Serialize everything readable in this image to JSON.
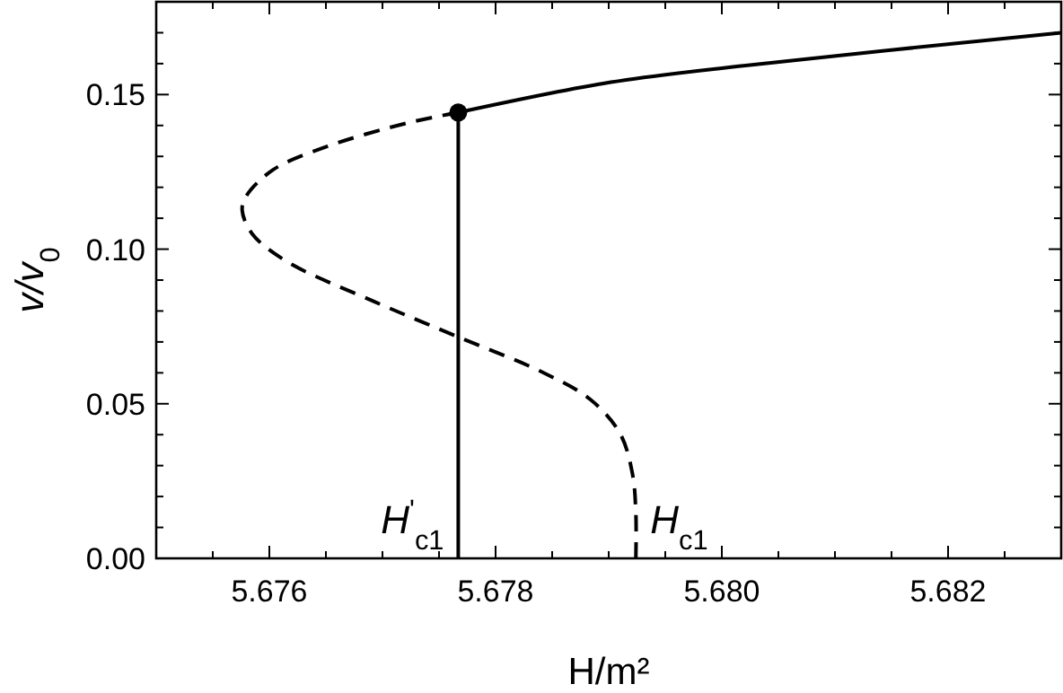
{
  "chart_data": {
    "type": "line",
    "xlabel": "H/m²",
    "ylabel": "v/v$_{0}$",
    "xlim": [
      5.675,
      5.683
    ],
    "ylim": [
      0,
      0.18
    ],
    "xticks": [
      {
        "value": 5.6755,
        "label": null
      },
      5.676,
      {
        "value": 5.6765,
        "label": null
      },
      {
        "value": 5.677,
        "label": null
      },
      {
        "value": 5.6775,
        "label": null
      },
      5.678,
      {
        "value": 5.6785,
        "label": null
      },
      {
        "value": 5.679,
        "label": null
      },
      {
        "value": 5.6795,
        "label": null
      },
      "5.680",
      {
        "value": 5.6805,
        "label": null
      },
      {
        "value": 5.681,
        "label": null
      },
      {
        "value": 5.6815,
        "label": null
      },
      5.682,
      {
        "value": 5.6825,
        "label": null
      }
    ],
    "yticks": [
      {
        "value": 0,
        "label": "0.00"
      },
      {
        "value": 0.01,
        "label": null
      },
      {
        "value": 0.02,
        "label": null
      },
      {
        "value": 0.03,
        "label": null
      },
      {
        "value": 0.04,
        "label": null
      },
      0.05,
      {
        "value": 0.06,
        "label": null
      },
      {
        "value": 0.07,
        "label": null
      },
      {
        "value": 0.08,
        "label": null
      },
      {
        "value": 0.09,
        "label": null
      },
      {
        "value": 0.1,
        "label": "0.10"
      },
      {
        "value": 0.11,
        "label": null
      },
      {
        "value": 0.12,
        "label": null
      },
      {
        "value": 0.13,
        "label": null
      },
      {
        "value": 0.14,
        "label": null
      },
      0.15,
      {
        "value": 0.16,
        "label": null
      },
      {
        "value": 0.17,
        "label": null
      }
    ],
    "grid": false,
    "series": [
      {
        "line_style": "solid",
        "color": "#000000",
        "x": [
          5.67767,
          5.67902,
          5.68021,
          5.683
        ],
        "values": [
          0.1442,
          0.154,
          0.1594,
          0.17
        ]
      },
      {
        "line_style": "dashed",
        "color": "#000000",
        "x": [
          5.67767,
          5.67723,
          5.67651,
          5.67603,
          5.67579,
          5.67576,
          5.67585,
          5.67615,
          5.67693,
          5.67767,
          5.67842,
          5.67884,
          5.6791,
          5.67921,
          5.67924,
          5.67924
        ],
        "values": [
          0.1442,
          0.1409,
          0.1332,
          0.1256,
          0.1168,
          0.1125,
          0.1049,
          0.0961,
          0.083,
          0.0716,
          0.0601,
          0.0513,
          0.0404,
          0.0273,
          0.0146,
          0
        ]
      },
      {
        "line_style": "solid",
        "color": "#000000",
        "x": [
          5.67767,
          5.67767
        ],
        "values": [
          0,
          0.1442
        ]
      },
      {
        "type": "scatter",
        "marker": "circle",
        "color": "#000000",
        "x": [
          5.67767
        ],
        "values": [
          0.1442
        ]
      }
    ],
    "annotations": [
      {
        "text": "H$^{'}$$_{c1}$",
        "x": 5.67767,
        "y": 0
      },
      {
        "text": "H$_{c1}$",
        "x": 5.67924,
        "y": 0
      }
    ]
  }
}
